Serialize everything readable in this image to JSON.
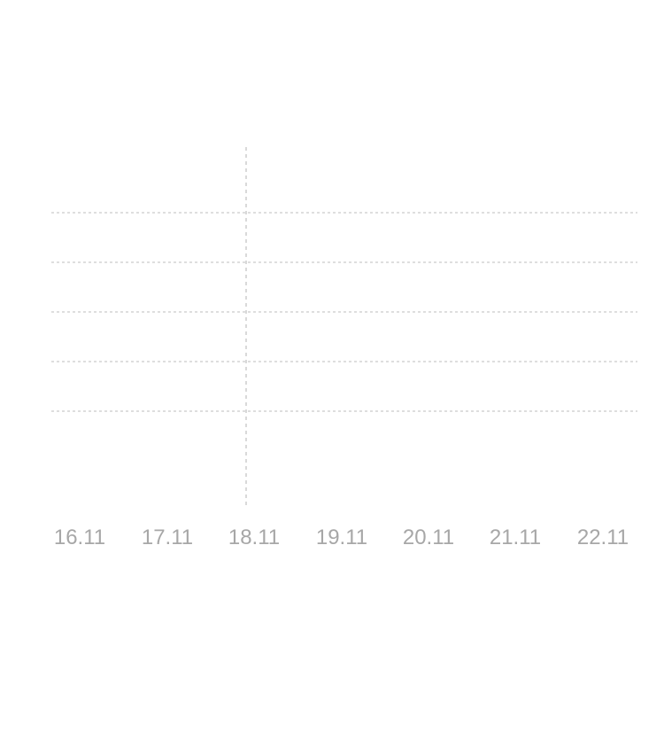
{
  "chart_data": {
    "type": "line",
    "x": [
      "16.11",
      "17.11",
      "18.11",
      "19.11",
      "20.11",
      "21.11",
      "22.11"
    ],
    "series": [],
    "grid": true,
    "highlighted_x": "18.11",
    "colors": {
      "grid": "#c9c9c9",
      "tick_text": "#a7a7a7",
      "background": "#ffffff"
    }
  }
}
